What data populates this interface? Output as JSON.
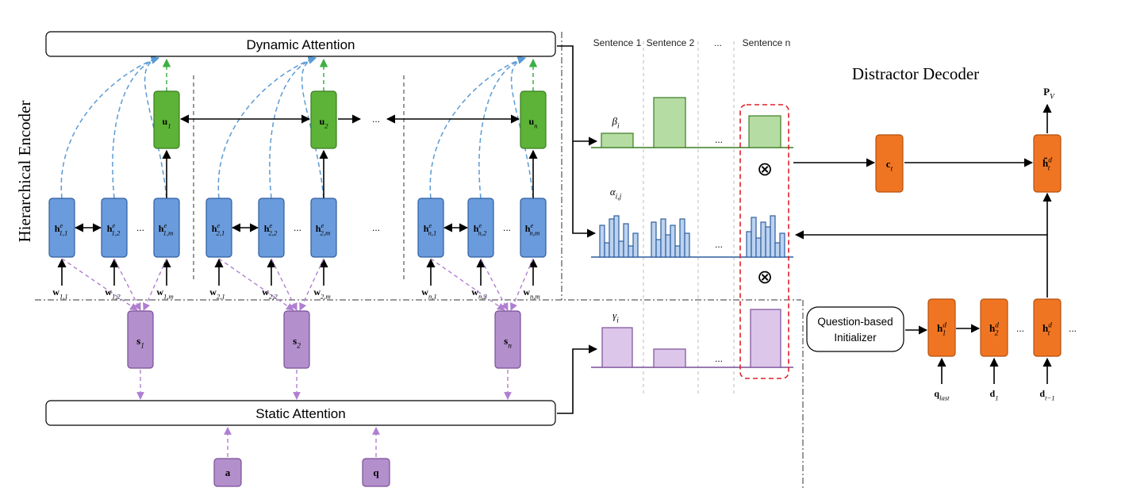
{
  "titles": {
    "dynamic_attention": "Dynamic Attention",
    "static_attention": "Static Attention",
    "hierarchical_encoder": "Hierarchical Encoder",
    "distractor_decoder": "Distractor Decoder",
    "question_initializer_line1": "Question-based",
    "question_initializer_line2": "Initializer"
  },
  "sentences": [
    "Sentence 1",
    "Sentence 2",
    "...",
    "Sentence n"
  ],
  "ellipsis": "...",
  "encoder_groups": [
    {
      "u": {
        "b": "u",
        "s": "1"
      },
      "h": [
        {
          "b": "h",
          "sup": "e",
          "s": "1,1"
        },
        {
          "b": "h",
          "sup": "e",
          "s": "1,2"
        },
        {
          "b": "h",
          "sup": "e",
          "s": "1,m"
        }
      ],
      "w": [
        {
          "b": "w",
          "s": "1,1"
        },
        {
          "b": "w",
          "s": "1,2"
        },
        {
          "b": "w",
          "s": "1,m"
        }
      ],
      "s": {
        "b": "s",
        "s": "1"
      }
    },
    {
      "u": {
        "b": "u",
        "s": "2"
      },
      "h": [
        {
          "b": "h",
          "sup": "e",
          "s": "2,1"
        },
        {
          "b": "h",
          "sup": "e",
          "s": "2,2"
        },
        {
          "b": "h",
          "sup": "e",
          "s": "2,m"
        }
      ],
      "w": [
        {
          "b": "w",
          "s": "2,1"
        },
        {
          "b": "w",
          "s": "2,2"
        },
        {
          "b": "w",
          "s": "2,m"
        }
      ],
      "s": {
        "b": "s",
        "s": "2"
      }
    },
    {
      "u": {
        "b": "u",
        "s": "n"
      },
      "h": [
        {
          "b": "h",
          "sup": "e",
          "s": "n,1"
        },
        {
          "b": "h",
          "sup": "e",
          "s": "n,2"
        },
        {
          "b": "h",
          "sup": "e",
          "s": "n,m"
        }
      ],
      "w": [
        {
          "b": "w",
          "s": "n,1"
        },
        {
          "b": "w",
          "s": "n,2"
        },
        {
          "b": "w",
          "s": "n,m"
        }
      ],
      "s": {
        "b": "s",
        "s": "n"
      }
    }
  ],
  "inputs": {
    "a": "a",
    "q": "q"
  },
  "attention_labels": {
    "beta": {
      "b": "β",
      "s": "i"
    },
    "alpha": {
      "b": "α",
      "s": "i,j"
    },
    "gamma": {
      "b": "γ",
      "s": "i"
    }
  },
  "otimes": "⊗",
  "decoder": {
    "c": {
      "b": "c",
      "s": "t"
    },
    "htilde": {
      "b": "h̃",
      "sup": "d",
      "s": "t"
    },
    "p": {
      "b": "P",
      "s": "V"
    },
    "h": [
      {
        "b": "h",
        "sup": "d",
        "s": "1"
      },
      {
        "b": "h",
        "sup": "d",
        "s": "2"
      },
      {
        "b": "h",
        "sup": "d",
        "s": "t"
      }
    ],
    "inputs": [
      {
        "b": "q",
        "s": "last"
      },
      {
        "b": "d",
        "s": "1"
      },
      {
        "b": "d",
        "s": "t−1"
      }
    ]
  },
  "colors": {
    "blue_fill": "#6a9bdc",
    "blue_stroke": "#2f5e9e",
    "green_fill": "#5cb337",
    "green_stroke": "#3b7d22",
    "purple_fill": "#b38fcc",
    "purple_stroke": "#7a4f98",
    "orange_fill": "#f07522",
    "orange_stroke": "#b3520f",
    "bar_green": "#b5dca3",
    "bar_blue": "#bcd3f0",
    "bar_purple": "#dcc6ea",
    "dash_blue": "#5b9bd5",
    "dash_green": "#3cb043",
    "dash_purple": "#b07fd0",
    "red_dash": "#e0202a"
  }
}
